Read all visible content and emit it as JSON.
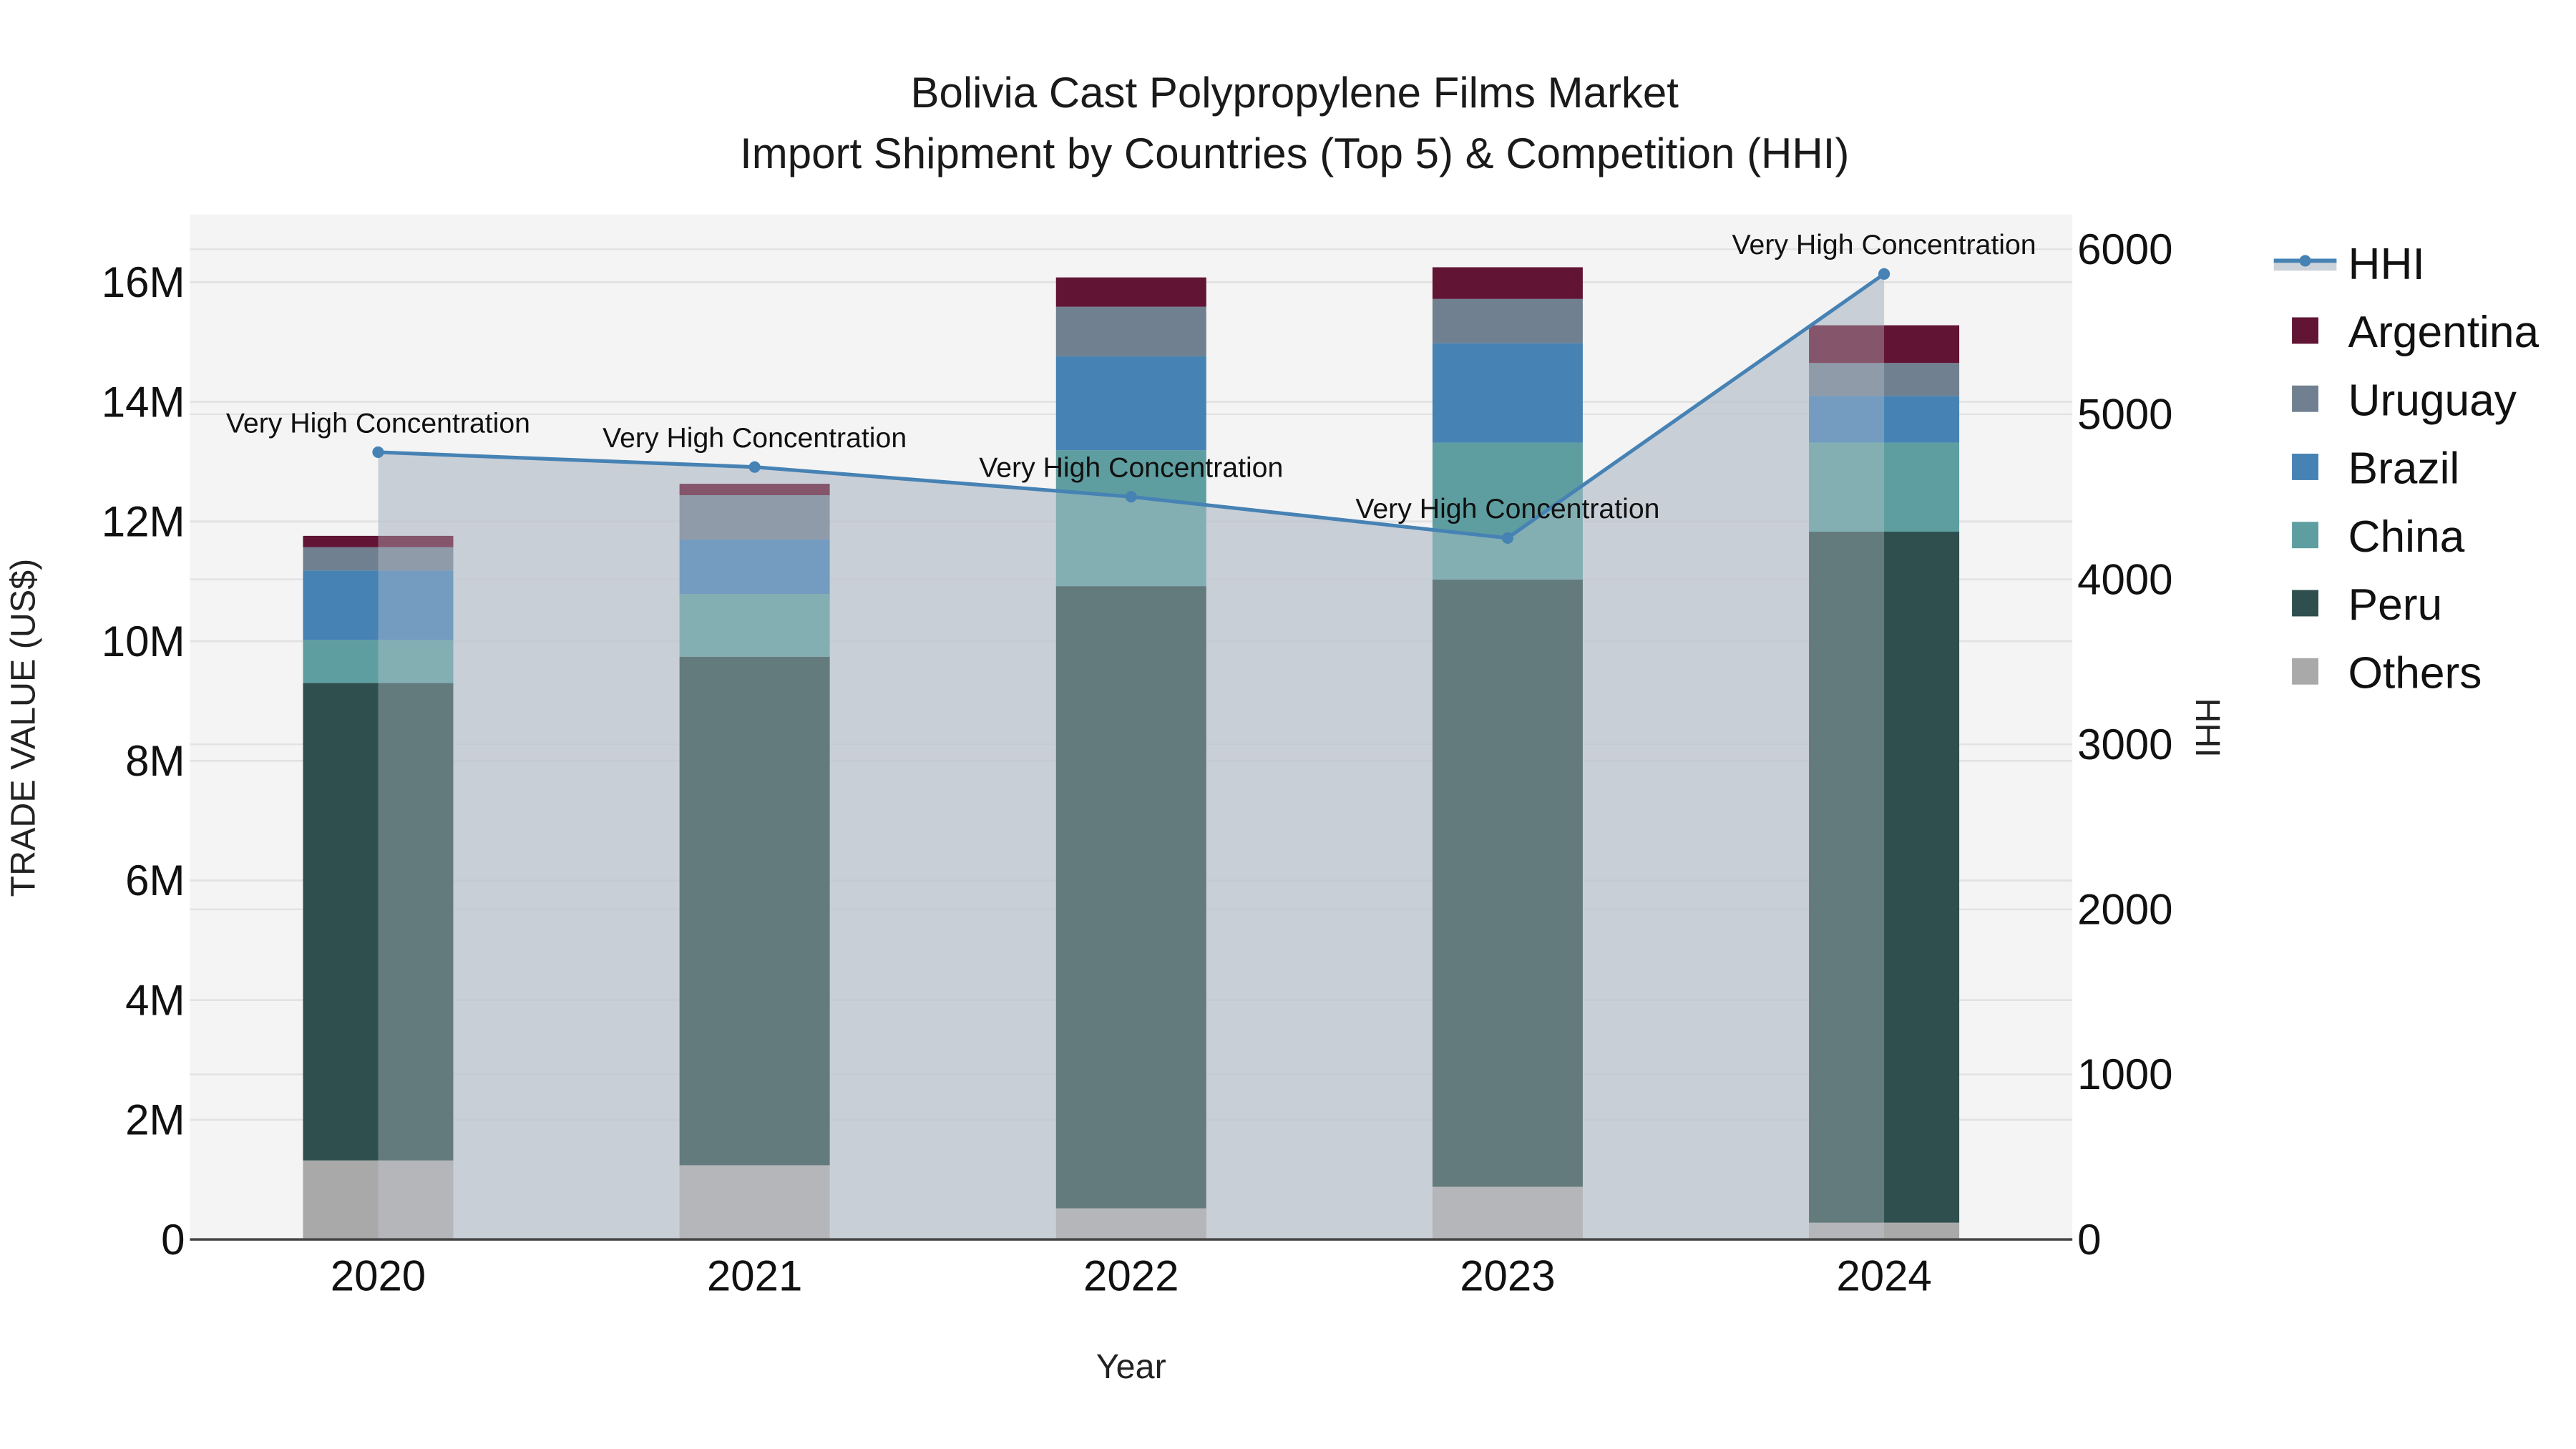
{
  "chart": {
    "title_line1": "Bolivia Cast Polypropylene Films Market",
    "title_line2": "Import Shipment by Countries (Top 5) & Competition (HHI)",
    "x_axis_title": "Year",
    "y_axis_title": "TRADE VALUE (US$)",
    "y2_axis_title": "HHI",
    "annotation_label": "Very High Concentration"
  },
  "legend": {
    "items": [
      {
        "name": "HHI",
        "type": "line",
        "color": "#4682b4"
      },
      {
        "name": "Argentina",
        "type": "bar",
        "color": "#611434"
      },
      {
        "name": "Uruguay",
        "type": "bar",
        "color": "#708090"
      },
      {
        "name": "Brazil",
        "type": "bar",
        "color": "#4682b4"
      },
      {
        "name": "China",
        "type": "bar",
        "color": "#5f9ea0"
      },
      {
        "name": "Peru",
        "type": "bar",
        "color": "#2f4f4f"
      },
      {
        "name": "Others",
        "type": "bar",
        "color": "#a9a9a9"
      }
    ]
  },
  "chart_data": {
    "type": "bar",
    "stacked": true,
    "title": "Bolivia Cast Polypropylene Films Market — Import Shipment by Countries (Top 5) & Competition (HHI)",
    "xlabel": "Year",
    "ylabel": "TRADE VALUE (US$)",
    "y2label": "HHI",
    "categories": [
      "2020",
      "2021",
      "2022",
      "2023",
      "2024"
    ],
    "ylim": [
      0,
      17000000
    ],
    "y_ticks": [
      0,
      2000000,
      4000000,
      6000000,
      8000000,
      10000000,
      12000000,
      14000000,
      16000000
    ],
    "y_tick_labels": [
      "0",
      "2M",
      "4M",
      "6M",
      "8M",
      "10M",
      "12M",
      "14M",
      "16M"
    ],
    "y2lim": [
      0,
      6200
    ],
    "y2_ticks": [
      0,
      1000,
      2000,
      3000,
      4000,
      5000,
      6000
    ],
    "y2_tick_labels": [
      "0",
      "1000",
      "2000",
      "3000",
      "4000",
      "5000",
      "6000"
    ],
    "series": [
      {
        "name": "Others",
        "color": "#a9a9a9",
        "values": [
          1320000,
          1240000,
          520000,
          880000,
          280000
        ]
      },
      {
        "name": "Peru",
        "color": "#2f4f4f",
        "values": [
          7980000,
          8500000,
          10400000,
          10150000,
          11550000
        ]
      },
      {
        "name": "China",
        "color": "#5f9ea0",
        "values": [
          720000,
          1050000,
          2270000,
          2290000,
          1490000
        ]
      },
      {
        "name": "Brazil",
        "color": "#4682b4",
        "values": [
          1160000,
          910000,
          1570000,
          1660000,
          780000
        ]
      },
      {
        "name": "Uruguay",
        "color": "#708090",
        "values": [
          390000,
          740000,
          830000,
          740000,
          550000
        ]
      },
      {
        "name": "Argentina",
        "color": "#611434",
        "values": [
          190000,
          190000,
          490000,
          530000,
          630000
        ]
      }
    ],
    "line_series": {
      "name": "HHI",
      "axis": "y2",
      "color": "#4682b4",
      "fill": "tozeroy",
      "values": [
        4770,
        4680,
        4500,
        4250,
        5850
      ],
      "labels": [
        "Very High Concentration",
        "Very High Concentration",
        "Very High Concentration",
        "Very High Concentration",
        "Very High Concentration"
      ]
    },
    "grid": true,
    "legend_position": "right"
  }
}
